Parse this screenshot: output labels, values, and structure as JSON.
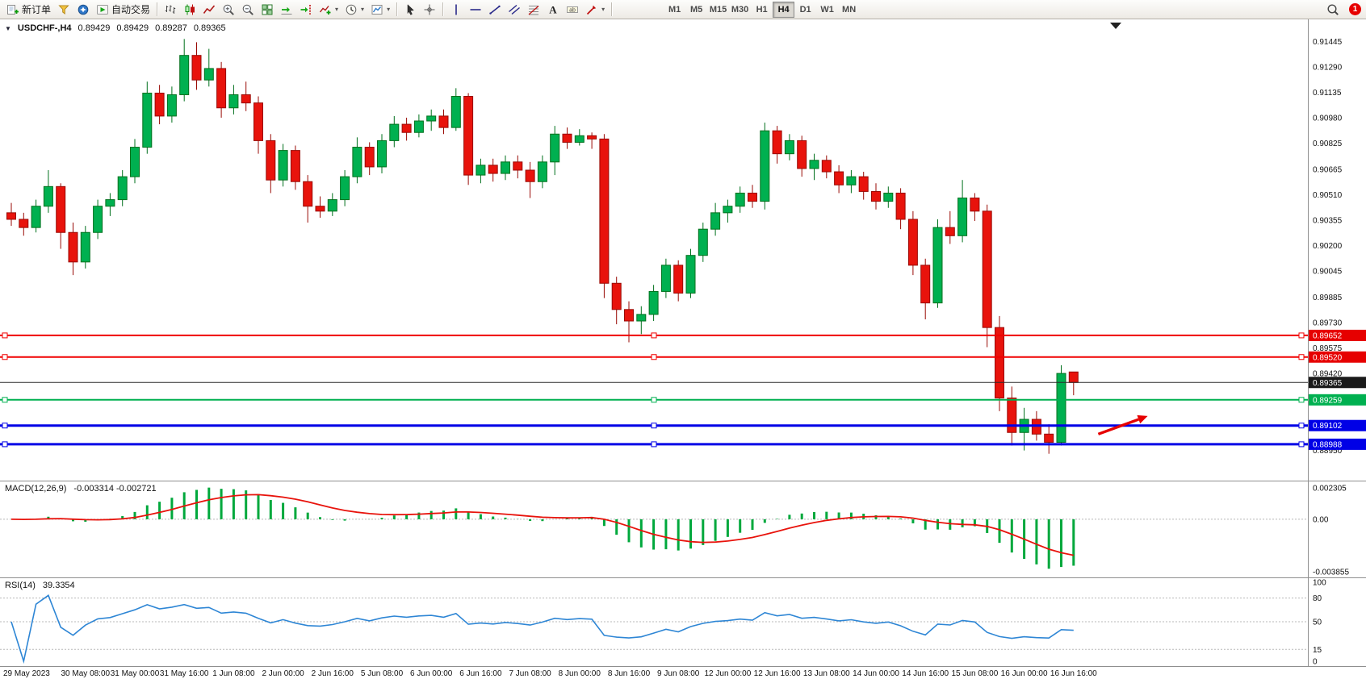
{
  "toolbar": {
    "new_order_label": "新订单",
    "autotrading_label": "自动交易",
    "timeframes": [
      "M1",
      "M5",
      "M15",
      "M30",
      "H1",
      "H4",
      "D1",
      "W1",
      "MN"
    ],
    "active_timeframe": "H4",
    "badge_count": "1"
  },
  "chart_header": {
    "symbol": "USDCHF-,H4",
    "open": "0.89429",
    "high": "0.89429",
    "low": "0.89287",
    "close": "0.89365"
  },
  "price_scale": {
    "labels": [
      "0.91445",
      "0.91290",
      "0.91135",
      "0.90980",
      "0.90825",
      "0.90665",
      "0.90510",
      "0.90355",
      "0.90200",
      "0.90045",
      "0.89885",
      "0.89730",
      "0.89575",
      "0.89420",
      "0.88950"
    ],
    "tags": [
      {
        "text": "0.89652",
        "color": "#e60000",
        "text_color": "#ffffff"
      },
      {
        "text": "0.89520",
        "color": "#e60000",
        "text_color": "#ffffff"
      },
      {
        "text": "0.89365",
        "color": "#1a1a1a",
        "text_color": "#ffffff"
      },
      {
        "text": "0.89259",
        "color": "#00b050",
        "text_color": "#ffffff"
      },
      {
        "text": "0.89102",
        "color": "#0000e6",
        "text_color": "#ffffff"
      },
      {
        "text": "0.88988",
        "color": "#0000e6",
        "text_color": "#ffffff"
      }
    ]
  },
  "time_scale": {
    "labels": [
      "29 May 2023",
      "30 May 08:00",
      "31 May 00:00",
      "31 May 16:00",
      "1 Jun 08:00",
      "2 Jun 00:00",
      "2 Jun 16:00",
      "5 Jun 08:00",
      "6 Jun 00:00",
      "6 Jun 16:00",
      "7 Jun 08:00",
      "8 Jun 00:00",
      "8 Jun 16:00",
      "9 Jun 08:00",
      "12 Jun 00:00",
      "12 Jun 16:00",
      "13 Jun 08:00",
      "14 Jun 00:00",
      "14 Jun 16:00",
      "15 Jun 08:00",
      "16 Jun 00:00",
      "16 Jun 16:00"
    ]
  },
  "chart_data": {
    "type": "candlestick",
    "symbol": "USDCHF-",
    "timeframe": "H4",
    "ylim": [
      0.88776,
      0.9157
    ],
    "up_color": "#00b050",
    "down_color": "#e8130c",
    "candles_ohlc": [
      [
        0.904,
        0.9046,
        0.9032,
        0.9036
      ],
      [
        0.9036,
        0.904,
        0.9026,
        0.9031
      ],
      [
        0.9031,
        0.9048,
        0.9028,
        0.9044
      ],
      [
        0.9044,
        0.9066,
        0.904,
        0.9056
      ],
      [
        0.9056,
        0.9058,
        0.9018,
        0.9028
      ],
      [
        0.9028,
        0.9034,
        0.9002,
        0.901
      ],
      [
        0.901,
        0.9032,
        0.9006,
        0.9028
      ],
      [
        0.9028,
        0.9048,
        0.9024,
        0.9044
      ],
      [
        0.9044,
        0.9052,
        0.9038,
        0.9048
      ],
      [
        0.9048,
        0.9066,
        0.9044,
        0.9062
      ],
      [
        0.9062,
        0.9085,
        0.9058,
        0.908
      ],
      [
        0.908,
        0.912,
        0.9076,
        0.9113
      ],
      [
        0.9113,
        0.9118,
        0.9094,
        0.9099
      ],
      [
        0.9099,
        0.9117,
        0.9095,
        0.9112
      ],
      [
        0.9112,
        0.9146,
        0.9108,
        0.9136
      ],
      [
        0.9136,
        0.9144,
        0.9115,
        0.9121
      ],
      [
        0.9121,
        0.914,
        0.9117,
        0.9128
      ],
      [
        0.9128,
        0.9132,
        0.9098,
        0.9104
      ],
      [
        0.9104,
        0.9118,
        0.91,
        0.9112
      ],
      [
        0.9112,
        0.912,
        0.9102,
        0.9107
      ],
      [
        0.9107,
        0.9111,
        0.9076,
        0.9084
      ],
      [
        0.9084,
        0.9088,
        0.9052,
        0.906
      ],
      [
        0.906,
        0.9082,
        0.9056,
        0.9078
      ],
      [
        0.9078,
        0.9081,
        0.9054,
        0.9059
      ],
      [
        0.9059,
        0.9063,
        0.9034,
        0.9044
      ],
      [
        0.9044,
        0.905,
        0.9037,
        0.9041
      ],
      [
        0.9041,
        0.9052,
        0.9038,
        0.9048
      ],
      [
        0.9048,
        0.9066,
        0.9044,
        0.9062
      ],
      [
        0.9062,
        0.9086,
        0.9058,
        0.908
      ],
      [
        0.908,
        0.9083,
        0.9063,
        0.9068
      ],
      [
        0.9068,
        0.9088,
        0.9064,
        0.9084
      ],
      [
        0.9084,
        0.9099,
        0.908,
        0.9094
      ],
      [
        0.9094,
        0.9098,
        0.9084,
        0.9089
      ],
      [
        0.9089,
        0.91,
        0.9086,
        0.9096
      ],
      [
        0.9096,
        0.9103,
        0.909,
        0.9099
      ],
      [
        0.9099,
        0.9103,
        0.9088,
        0.9092
      ],
      [
        0.9092,
        0.9116,
        0.909,
        0.9111
      ],
      [
        0.9111,
        0.9113,
        0.9057,
        0.9063
      ],
      [
        0.9063,
        0.9073,
        0.9058,
        0.9069
      ],
      [
        0.9069,
        0.9073,
        0.9059,
        0.9064
      ],
      [
        0.9064,
        0.9075,
        0.906,
        0.9071
      ],
      [
        0.9071,
        0.9075,
        0.9061,
        0.9066
      ],
      [
        0.9066,
        0.9071,
        0.9049,
        0.9059
      ],
      [
        0.9059,
        0.9075,
        0.9055,
        0.9071
      ],
      [
        0.9071,
        0.9093,
        0.9063,
        0.9088
      ],
      [
        0.9088,
        0.9092,
        0.9079,
        0.9083
      ],
      [
        0.9083,
        0.9091,
        0.9081,
        0.9087
      ],
      [
        0.9087,
        0.9089,
        0.9079,
        0.9085
      ],
      [
        0.9085,
        0.9088,
        0.8988,
        0.8997
      ],
      [
        0.8997,
        0.9001,
        0.8972,
        0.8981
      ],
      [
        0.8981,
        0.8986,
        0.8961,
        0.8974
      ],
      [
        0.8974,
        0.8983,
        0.8966,
        0.8978
      ],
      [
        0.8978,
        0.8996,
        0.8974,
        0.8992
      ],
      [
        0.8992,
        0.9012,
        0.8988,
        0.9008
      ],
      [
        0.9008,
        0.9011,
        0.8986,
        0.8991
      ],
      [
        0.8991,
        0.9018,
        0.8988,
        0.9014
      ],
      [
        0.9014,
        0.9034,
        0.901,
        0.903
      ],
      [
        0.903,
        0.9046,
        0.9026,
        0.904
      ],
      [
        0.904,
        0.9048,
        0.9034,
        0.9044
      ],
      [
        0.9044,
        0.9056,
        0.904,
        0.9052
      ],
      [
        0.9052,
        0.9057,
        0.9043,
        0.9047
      ],
      [
        0.9047,
        0.9095,
        0.9042,
        0.909
      ],
      [
        0.909,
        0.9093,
        0.907,
        0.9076
      ],
      [
        0.9076,
        0.9088,
        0.9072,
        0.9084
      ],
      [
        0.9084,
        0.9087,
        0.9062,
        0.9067
      ],
      [
        0.9067,
        0.9076,
        0.906,
        0.9072
      ],
      [
        0.9072,
        0.9075,
        0.9061,
        0.9065
      ],
      [
        0.9065,
        0.9069,
        0.9052,
        0.9057
      ],
      [
        0.9057,
        0.9066,
        0.9052,
        0.9062
      ],
      [
        0.9062,
        0.9065,
        0.9048,
        0.9053
      ],
      [
        0.9053,
        0.9058,
        0.9042,
        0.9047
      ],
      [
        0.9047,
        0.9056,
        0.9043,
        0.9052
      ],
      [
        0.9052,
        0.9055,
        0.903,
        0.9036
      ],
      [
        0.9036,
        0.9041,
        0.9002,
        0.9008
      ],
      [
        0.9008,
        0.9012,
        0.8975,
        0.8985
      ],
      [
        0.8985,
        0.9036,
        0.8982,
        0.9031
      ],
      [
        0.9031,
        0.9041,
        0.9021,
        0.9026
      ],
      [
        0.9026,
        0.906,
        0.9022,
        0.9049
      ],
      [
        0.9049,
        0.9052,
        0.9035,
        0.9041
      ],
      [
        0.9041,
        0.9045,
        0.8958,
        0.897
      ],
      [
        0.897,
        0.8977,
        0.8919,
        0.8927
      ],
      [
        0.8927,
        0.8934,
        0.8898,
        0.8906
      ],
      [
        0.8906,
        0.8921,
        0.8895,
        0.8914
      ],
      [
        0.8914,
        0.8919,
        0.8901,
        0.8905
      ],
      [
        0.8905,
        0.8911,
        0.8893,
        0.89
      ],
      [
        0.89,
        0.8947,
        0.8898,
        0.8942
      ],
      [
        0.89429,
        0.89429,
        0.89287,
        0.89365
      ]
    ],
    "hlines": [
      {
        "price": 0.89652,
        "color": "#f00000",
        "width": 2,
        "name": "resistance-line-upper",
        "handles": true
      },
      {
        "price": 0.8952,
        "color": "#f00000",
        "width": 2,
        "name": "resistance-line-lower",
        "handles": true
      },
      {
        "price": 0.89365,
        "color": "#2a2a2a",
        "width": 1,
        "name": "current-price-line",
        "handles": false
      },
      {
        "price": 0.89259,
        "color": "#00b050",
        "width": 2,
        "name": "support-line-green",
        "handles": true
      },
      {
        "price": 0.89102,
        "color": "#0000e6",
        "width": 3,
        "name": "support-line-blue-upper",
        "handles": true
      },
      {
        "price": 0.88988,
        "color": "#0000e6",
        "width": 3,
        "name": "support-line-blue-lower",
        "handles": true
      }
    ],
    "indicators": [
      {
        "type": "MACD",
        "params": [
          12,
          26,
          9
        ],
        "title": "MACD(12,26,9)",
        "values_text": "-0.003314 -0.002721",
        "range": [
          -0.003855,
          0.002305
        ],
        "axis_labels": [
          "0.002305",
          "0.00",
          "-0.003855"
        ],
        "histogram_color": "#00a83c",
        "signal_color": "#e8130c"
      },
      {
        "type": "RSI",
        "params": [
          14
        ],
        "title": "RSI(14)",
        "values_text": "39.3354",
        "range": [
          0,
          100
        ],
        "levels": [
          80,
          50,
          15
        ],
        "axis_labels": [
          "100",
          "80",
          "50",
          "15",
          "0"
        ],
        "line_color": "#2e86d5"
      }
    ],
    "annotations": [
      {
        "type": "arrow",
        "color": "#e60000",
        "from": [
          88,
          0.8905
        ],
        "to": [
          92,
          0.8916
        ]
      }
    ]
  }
}
